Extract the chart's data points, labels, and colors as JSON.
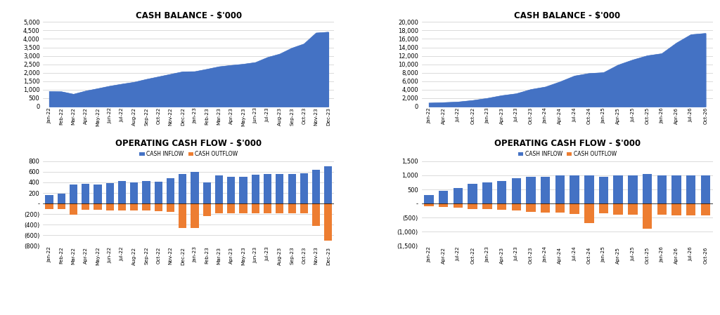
{
  "title_tl": "CASH BALANCE - $'000",
  "title_tr": "CASH BALANCE - $'000",
  "title_bl": "OPERATING CASH FLOW - $'000",
  "title_br": "OPERATING CASH FLOW - $'000",
  "legend_inflow": "CASH INFLOW",
  "legend_outflow": "CASH OUTFLOW",
  "area_color": "#4472C4",
  "bar_inflow_color": "#4472C4",
  "bar_outflow_color": "#ED7D31",
  "bg_color": "#FFFFFF",
  "tl_labels": [
    "Jan-22",
    "Feb-22",
    "Mar-22",
    "Apr-22",
    "May-22",
    "Jun-22",
    "Jul-22",
    "Aug-22",
    "Sep-22",
    "Oct-22",
    "Nov-22",
    "Dec-22",
    "Jan-23",
    "Feb-23",
    "Mar-23",
    "Apr-23",
    "May-23",
    "Jun-23",
    "Jul-23",
    "Aug-23",
    "Sep-23",
    "Oct-23",
    "Nov-23",
    "Dec-23"
  ],
  "tl_values": [
    880,
    870,
    720,
    910,
    1050,
    1200,
    1320,
    1430,
    1600,
    1750,
    1900,
    2050,
    2060,
    2200,
    2350,
    2430,
    2500,
    2600,
    2900,
    3100,
    3450,
    3700,
    4350,
    4400
  ],
  "tr_labels": [
    "Jan-22",
    "Apr-22",
    "Jul-22",
    "Oct-22",
    "Jan-23",
    "Apr-23",
    "Jul-23",
    "Oct-23",
    "Jan-24",
    "Apr-24",
    "Jul-24",
    "Oct-24",
    "Jan-25",
    "Apr-25",
    "Jul-25",
    "Oct-25",
    "Jan-26",
    "Apr-26",
    "Jul-26",
    "Oct-26"
  ],
  "tr_values": [
    800,
    900,
    1050,
    1400,
    1900,
    2550,
    3000,
    4000,
    4600,
    5800,
    7200,
    7800,
    8000,
    9800,
    11000,
    12000,
    12500,
    15000,
    17000,
    17300
  ],
  "bl_labels": [
    "Jan-22",
    "Feb-22",
    "Mar-22",
    "Apr-22",
    "May-22",
    "Jun-22",
    "Jul-22",
    "Aug-22",
    "Sep-22",
    "Oct-22",
    "Nov-22",
    "Dec-22",
    "Jan-23",
    "Feb-23",
    "Mar-23",
    "Apr-23",
    "May-23",
    "Jun-23",
    "Jul-23",
    "Aug-23",
    "Sep-23",
    "Oct-23",
    "Nov-23",
    "Dec-23"
  ],
  "bl_inflow": [
    160,
    190,
    360,
    380,
    365,
    385,
    430,
    395,
    420,
    415,
    480,
    565,
    595,
    395,
    530,
    510,
    510,
    545,
    555,
    565,
    555,
    575,
    640,
    710
  ],
  "bl_outflow": [
    -100,
    -105,
    -210,
    -120,
    -125,
    -130,
    -135,
    -130,
    -135,
    -140,
    -155,
    -470,
    -470,
    -245,
    -185,
    -185,
    -185,
    -185,
    -185,
    -185,
    -185,
    -185,
    -430,
    -700
  ],
  "br_labels": [
    "Jan-22",
    "Apr-22",
    "Jul-22",
    "Oct-22",
    "Jan-23",
    "Apr-23",
    "Jul-23",
    "Oct-23",
    "Jan-24",
    "Apr-24",
    "Jul-24",
    "Oct-24",
    "Jan-25",
    "Apr-25",
    "Jul-25",
    "Oct-25",
    "Jan-26",
    "Apr-26",
    "Jul-26",
    "Oct-26"
  ],
  "br_inflow": [
    300,
    450,
    550,
    700,
    750,
    800,
    900,
    950,
    950,
    1000,
    1000,
    1000,
    950,
    1000,
    1000,
    1050,
    1000,
    1000,
    1000,
    1000
  ],
  "br_outflow": [
    -100,
    -120,
    -160,
    -200,
    -200,
    -220,
    -260,
    -300,
    -320,
    -330,
    -380,
    -700,
    -350,
    -400,
    -400,
    -900,
    -400,
    -420,
    -430,
    -430
  ]
}
